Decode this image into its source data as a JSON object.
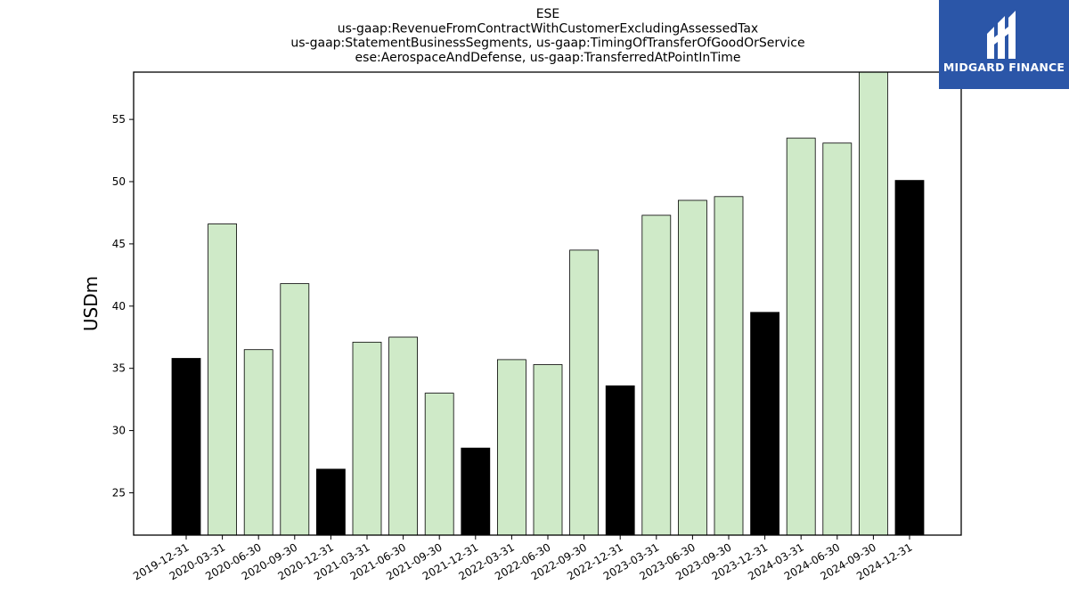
{
  "chart_data": {
    "type": "bar",
    "title_lines": [
      "ESE",
      "us-gaap:RevenueFromContractWithCustomerExcludingAssessedTax",
      "us-gaap:StatementBusinessSegments, us-gaap:TimingOfTransferOfGoodOrService",
      "ese:AerospaceAndDefense, us-gaap:TransferredAtPointInTime"
    ],
    "ylabel": "USDm",
    "xlabel": "",
    "ylim": [
      21.6,
      58.8
    ],
    "yticks": [
      25,
      30,
      35,
      40,
      45,
      50,
      55
    ],
    "categories": [
      "2019-12-31",
      "2020-03-31",
      "2020-06-30",
      "2020-09-30",
      "2020-12-31",
      "2021-03-31",
      "2021-06-30",
      "2021-09-30",
      "2021-12-31",
      "2022-03-31",
      "2022-06-30",
      "2022-09-30",
      "2022-12-31",
      "2023-03-31",
      "2023-06-30",
      "2023-09-30",
      "2023-12-31",
      "2024-03-31",
      "2024-06-30",
      "2024-09-30",
      "2024-12-31"
    ],
    "values": [
      35.8,
      46.6,
      36.5,
      41.8,
      26.9,
      37.1,
      37.5,
      33.0,
      28.6,
      35.7,
      35.3,
      44.5,
      33.6,
      47.3,
      48.5,
      48.8,
      39.5,
      53.5,
      53.1,
      58.8,
      50.1
    ],
    "bar_colors": {
      "quarter": "#cfeac8",
      "year_end": "#000000",
      "edge": "#000000"
    },
    "year_end_flags": [
      true,
      false,
      false,
      false,
      true,
      false,
      false,
      false,
      true,
      false,
      false,
      false,
      true,
      false,
      false,
      false,
      true,
      false,
      false,
      false,
      true
    ],
    "grid": false,
    "legend": "none"
  },
  "logo": {
    "text": "MIDGARD FINANCE",
    "bg_color": "#2b56a8",
    "icon": "midgard-logo-icon"
  }
}
